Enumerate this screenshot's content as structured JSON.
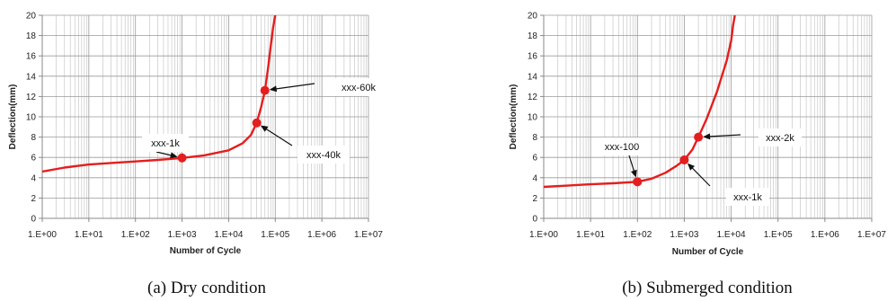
{
  "chart_data": [
    {
      "type": "line",
      "caption": "(a)  Dry condition",
      "xlabel": "Number of Cycle",
      "ylabel": "Deflection(mm)",
      "xscale": "log",
      "xlim": [
        1,
        10000000
      ],
      "ylim": [
        0,
        20
      ],
      "x_ticks": [
        "1.E+00",
        "1.E+01",
        "1.E+02",
        "1.E+03",
        "1.E+04",
        "1.E+05",
        "1.E+06",
        "1.E+07"
      ],
      "y_ticks": [
        "0",
        "2",
        "4",
        "6",
        "8",
        "10",
        "12",
        "14",
        "16",
        "18",
        "20"
      ],
      "grid": true,
      "line_color": "#e41e1e",
      "series": [
        {
          "x": [
            1,
            3,
            10,
            30,
            100,
            300,
            1000,
            3000,
            10000,
            20000,
            30000,
            40000,
            50000,
            60000,
            70000,
            80000,
            90000,
            100000
          ],
          "y": [
            4.6,
            5.0,
            5.3,
            5.45,
            5.6,
            5.75,
            5.95,
            6.2,
            6.7,
            7.4,
            8.2,
            9.4,
            11.0,
            12.6,
            14.8,
            17.0,
            18.8,
            20
          ]
        }
      ],
      "annotations": [
        {
          "label": "xxx-1k",
          "x": 1000,
          "y": 5.95
        },
        {
          "label": "xxx-40k",
          "x": 40000,
          "y": 9.4
        },
        {
          "label": "xxx-60k",
          "x": 60000,
          "y": 12.6
        }
      ]
    },
    {
      "type": "line",
      "caption": "(b) Submerged condition",
      "xlabel": "Number of Cycle",
      "ylabel": "Deflection(mm)",
      "xscale": "log",
      "xlim": [
        1,
        10000000
      ],
      "ylim": [
        0,
        20
      ],
      "x_ticks": [
        "1.E+00",
        "1.E+01",
        "1.E+02",
        "1.E+03",
        "1.E+04",
        "1.E+05",
        "1.E+06",
        "1.E+07"
      ],
      "y_ticks": [
        "0",
        "2",
        "4",
        "6",
        "8",
        "10",
        "12",
        "14",
        "16",
        "18",
        "20"
      ],
      "grid": true,
      "line_color": "#e41e1e",
      "series": [
        {
          "x": [
            1,
            10,
            30,
            100,
            200,
            400,
            700,
            1000,
            1500,
            2000,
            3000,
            5000,
            8000,
            10000,
            11000,
            12000
          ],
          "y": [
            3.1,
            3.35,
            3.45,
            3.6,
            3.9,
            4.5,
            5.2,
            5.75,
            6.8,
            8.0,
            9.8,
            12.5,
            15.5,
            17.5,
            19.0,
            20
          ]
        }
      ],
      "annotations": [
        {
          "label": "xxx-100",
          "x": 100,
          "y": 3.6
        },
        {
          "label": "xxx-1k",
          "x": 1000,
          "y": 5.75
        },
        {
          "label": "xxx-2k",
          "x": 2000,
          "y": 8.0
        }
      ]
    }
  ]
}
